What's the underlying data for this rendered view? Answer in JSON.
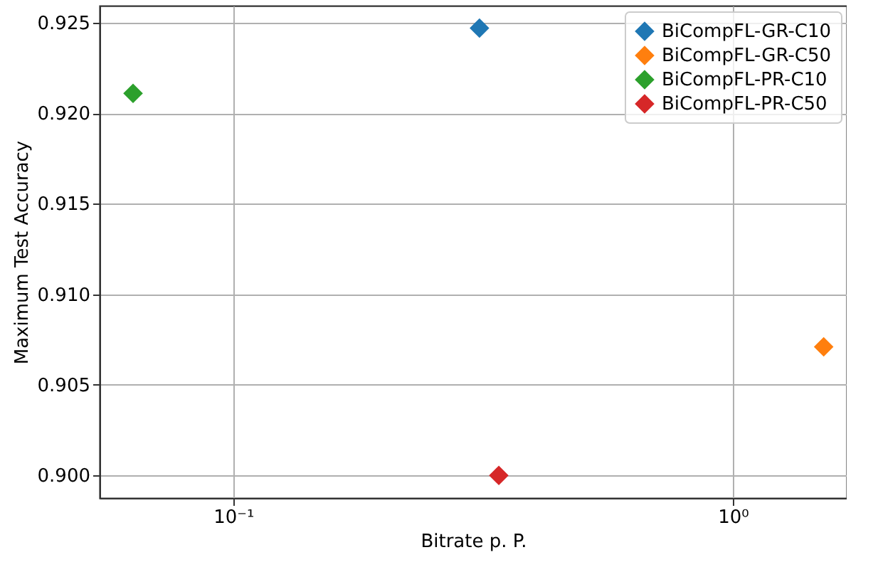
{
  "chart_data": {
    "type": "scatter",
    "xlabel": "Bitrate p. P.",
    "ylabel": "Maximum Test Accuracy",
    "log": "x",
    "grid": true,
    "legend": "top right",
    "marker": "diamond",
    "xlim": [
      0.054,
      1.69
    ],
    "ylim": [
      0.89875,
      0.92594
    ],
    "xticks": [
      {
        "value": 0.1,
        "label": "10⁻¹"
      },
      {
        "value": 1,
        "label": "10⁰"
      }
    ],
    "yticks": [
      {
        "value": 0.9,
        "label": "0.900"
      },
      {
        "value": 0.905,
        "label": "0.905"
      },
      {
        "value": 0.91,
        "label": "0.910"
      },
      {
        "value": 0.915,
        "label": "0.915"
      },
      {
        "value": 0.92,
        "label": "0.920"
      },
      {
        "value": 0.925,
        "label": "0.925"
      }
    ],
    "series": [
      {
        "name": "BiCompFL-GR-C10",
        "color": "#1f77b4",
        "x": [
          0.311
        ],
        "values": [
          0.9247
        ]
      },
      {
        "name": "BiCompFL-GR-C50",
        "color": "#ff7f0e",
        "x": [
          1.52
        ],
        "values": [
          0.9071
        ]
      },
      {
        "name": "BiCompFL-PR-C10",
        "color": "#2ca02c",
        "x": [
          0.063
        ],
        "values": [
          0.9211
        ]
      },
      {
        "name": "BiCompFL-PR-C50",
        "color": "#d62728",
        "x": [
          0.34
        ],
        "values": [
          0.9
        ]
      }
    ]
  }
}
